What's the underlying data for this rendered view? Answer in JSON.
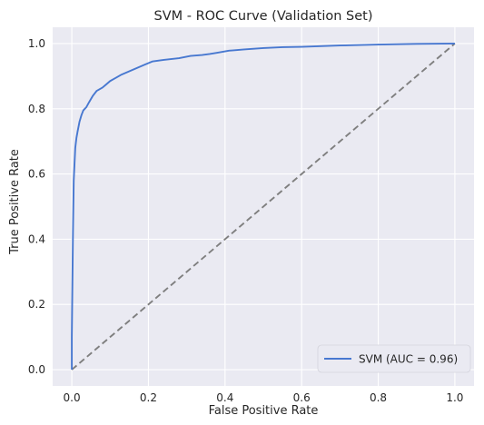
{
  "chart_data": {
    "type": "line",
    "title": "SVM - ROC Curve (Validation Set)",
    "xlabel": "False Positive Rate",
    "ylabel": "True Positive Rate",
    "xlim": [
      -0.05,
      1.05
    ],
    "ylim": [
      -0.05,
      1.05
    ],
    "xticks": [
      0.0,
      0.2,
      0.4,
      0.6,
      0.8,
      1.0
    ],
    "yticks": [
      0.0,
      0.2,
      0.4,
      0.6,
      0.8,
      1.0
    ],
    "xtick_labels": [
      "0.0",
      "0.2",
      "0.4",
      "0.6",
      "0.8",
      "1.0"
    ],
    "ytick_labels": [
      "0.0",
      "0.2",
      "0.4",
      "0.6",
      "0.8",
      "1.0"
    ],
    "grid": true,
    "legend_position": "bottom-right",
    "series": [
      {
        "name": "SVM (AUC = 0.96)",
        "color": "#4878d0",
        "style": "solid",
        "x": [
          0.0,
          0.0,
          0.003,
          0.005,
          0.007,
          0.009,
          0.012,
          0.015,
          0.02,
          0.025,
          0.03,
          0.038,
          0.045,
          0.055,
          0.065,
          0.08,
          0.09,
          0.1,
          0.115,
          0.13,
          0.15,
          0.17,
          0.19,
          0.21,
          0.24,
          0.28,
          0.31,
          0.34,
          0.36,
          0.38,
          0.41,
          0.45,
          0.5,
          0.55,
          0.6,
          0.7,
          0.8,
          0.9,
          1.0
        ],
        "y": [
          0.0,
          0.1,
          0.42,
          0.58,
          0.63,
          0.68,
          0.71,
          0.73,
          0.76,
          0.78,
          0.795,
          0.805,
          0.82,
          0.84,
          0.855,
          0.865,
          0.875,
          0.885,
          0.895,
          0.905,
          0.915,
          0.925,
          0.935,
          0.945,
          0.95,
          0.955,
          0.962,
          0.965,
          0.968,
          0.972,
          0.978,
          0.982,
          0.986,
          0.989,
          0.99,
          0.994,
          0.997,
          0.999,
          1.0
        ]
      },
      {
        "name": "",
        "color": "#7f7f7f",
        "style": "dashed",
        "x": [
          0.0,
          1.0
        ],
        "y": [
          0.0,
          1.0
        ]
      }
    ]
  }
}
